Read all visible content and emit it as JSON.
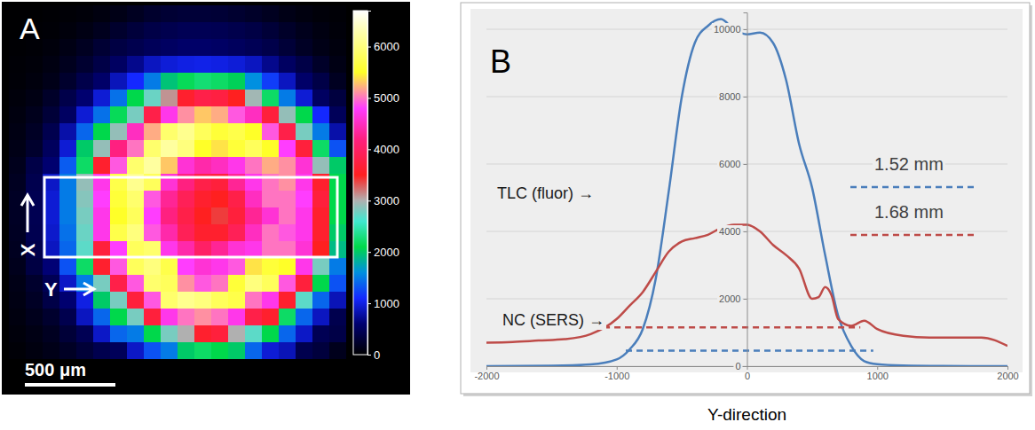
{
  "chart_data": [
    {
      "type": "heatmap",
      "panel": "A",
      "tick_labels": false,
      "scale_bar_label": "500 μm",
      "box_labels": [
        "X",
        "Y"
      ],
      "values": [
        [
          10,
          10,
          20,
          30,
          50,
          80,
          120,
          180,
          240,
          280,
          300,
          300,
          290,
          260,
          220,
          170,
          120,
          80,
          50,
          30
        ],
        [
          10,
          20,
          30,
          60,
          100,
          160,
          240,
          320,
          380,
          420,
          450,
          450,
          440,
          410,
          370,
          300,
          220,
          150,
          90,
          50
        ],
        [
          20,
          30,
          60,
          110,
          180,
          280,
          360,
          420,
          480,
          520,
          560,
          560,
          540,
          500,
          460,
          400,
          300,
          200,
          120,
          70
        ],
        [
          30,
          50,
          90,
          160,
          260,
          380,
          520,
          700,
          880,
          960,
          1000,
          1020,
          1000,
          960,
          880,
          700,
          520,
          380,
          220,
          110
        ],
        [
          40,
          70,
          130,
          240,
          400,
          560,
          860,
          1100,
          1500,
          1950,
          2150,
          2250,
          2200,
          2050,
          1600,
          1200,
          880,
          560,
          380,
          180
        ],
        [
          60,
          100,
          220,
          400,
          600,
          950,
          1450,
          2100,
          2750,
          3100,
          3600,
          3800,
          3750,
          3500,
          2950,
          2200,
          1500,
          950,
          520,
          340
        ],
        [
          80,
          150,
          300,
          520,
          950,
          1450,
          2150,
          2800,
          3800,
          4700,
          5100,
          5300,
          5200,
          4900,
          4500,
          3700,
          2900,
          2100,
          1100,
          480
        ],
        [
          100,
          200,
          420,
          800,
          1400,
          2100,
          2900,
          4500,
          5200,
          5900,
          6100,
          5800,
          5600,
          5700,
          5500,
          4900,
          3800,
          2800,
          1500,
          800
        ],
        [
          120,
          240,
          500,
          950,
          2000,
          2900,
          4200,
          5000,
          5900,
          6200,
          6000,
          5500,
          5400,
          5600,
          5800,
          5500,
          4800,
          3700,
          2200,
          1300
        ],
        [
          150,
          380,
          600,
          1350,
          2200,
          3600,
          4900,
          5900,
          6200,
          5300,
          4600,
          4400,
          4500,
          4700,
          5000,
          5200,
          5100,
          4600,
          2900,
          2000
        ],
        [
          180,
          420,
          900,
          1500,
          2900,
          4700,
          5700,
          6100,
          5800,
          4600,
          4200,
          3800,
          3700,
          4300,
          4700,
          5000,
          5100,
          4700,
          3600,
          2100
        ],
        [
          200,
          440,
          950,
          1500,
          2850,
          4800,
          5600,
          5900,
          4900,
          4300,
          3900,
          3600,
          3500,
          3800,
          4500,
          5000,
          5000,
          4800,
          3700,
          2100
        ],
        [
          200,
          440,
          950,
          1500,
          2800,
          4700,
          5500,
          5800,
          4800,
          4200,
          3800,
          3500,
          3400,
          3700,
          4300,
          4600,
          5000,
          4700,
          3600,
          2100
        ],
        [
          190,
          430,
          920,
          1450,
          2750,
          4700,
          5700,
          6000,
          4900,
          4400,
          3900,
          3600,
          3600,
          3900,
          4500,
          5000,
          4900,
          4700,
          3600,
          2000
        ],
        [
          170,
          400,
          880,
          1400,
          2700,
          3700,
          4800,
          5800,
          5900,
          4700,
          4400,
          4000,
          4300,
          4600,
          4700,
          5000,
          5000,
          4600,
          3500,
          1900
        ],
        [
          150,
          360,
          620,
          1300,
          2200,
          3600,
          4900,
          5800,
          6000,
          5700,
          4800,
          4600,
          4700,
          4900,
          5400,
          5600,
          5500,
          4700,
          2800,
          1500
        ],
        [
          120,
          240,
          450,
          900,
          1500,
          2800,
          3800,
          4900,
          5900,
          5800,
          5100,
          4900,
          5000,
          5600,
          6000,
          5800,
          4900,
          3700,
          2100,
          1300
        ],
        [
          100,
          200,
          380,
          600,
          1000,
          2000,
          2800,
          3700,
          4900,
          5900,
          6100,
          6000,
          5800,
          5700,
          5000,
          4700,
          3600,
          2700,
          1400,
          850
        ],
        [
          80,
          150,
          250,
          420,
          880,
          1400,
          2100,
          2800,
          3700,
          4700,
          5000,
          5100,
          5000,
          4700,
          3800,
          3600,
          2200,
          1400,
          880,
          420
        ],
        [
          60,
          110,
          180,
          300,
          450,
          900,
          1400,
          1500,
          2100,
          2800,
          3000,
          3600,
          3700,
          3000,
          2700,
          2100,
          1400,
          900,
          450,
          380
        ],
        [
          40,
          80,
          130,
          200,
          300,
          420,
          480,
          900,
          1300,
          1500,
          2000,
          2200,
          2100,
          2000,
          1400,
          950,
          850,
          420,
          330,
          150
        ]
      ],
      "colorbar": {
        "range": [
          0,
          6700
        ],
        "ticks": [
          0,
          1000,
          2000,
          3000,
          4000,
          5000,
          6000
        ]
      }
    },
    {
      "type": "line",
      "panel": "B",
      "xlabel": "Y-direction",
      "xlim": [
        -2000,
        2000
      ],
      "xticks": [
        -2000,
        -1000,
        0,
        1000,
        2000
      ],
      "ylim": [
        0,
        10500
      ],
      "yticks": [
        0,
        2000,
        4000,
        6000,
        8000,
        10000
      ],
      "grid": true,
      "series": [
        {
          "name": "TLC (fluor) →",
          "color": "#4a7ebb",
          "x": [
            -2000,
            -1500,
            -1200,
            -1000,
            -900,
            -800,
            -700,
            -600,
            -500,
            -400,
            -300,
            -200,
            -100,
            0,
            100,
            200,
            300,
            400,
            500,
            600,
            700,
            800,
            900,
            1000,
            1200,
            1500,
            2000
          ],
          "values": [
            0,
            10,
            50,
            200,
            500,
            1100,
            2600,
            5200,
            8000,
            9600,
            10100,
            10300,
            10000,
            9850,
            9900,
            9600,
            8500,
            6600,
            5300,
            3300,
            1500,
            600,
            150,
            60,
            20,
            5,
            0
          ]
        },
        {
          "name": "NC (SERS) →",
          "color": "#be4b48",
          "x": [
            -2000,
            -1800,
            -1600,
            -1400,
            -1200,
            -1000,
            -900,
            -800,
            -700,
            -600,
            -500,
            -400,
            -300,
            -200,
            -100,
            0,
            100,
            200,
            300,
            400,
            500,
            550,
            600,
            650,
            700,
            800,
            900,
            1000,
            1200,
            1400,
            1600,
            1800,
            2000
          ],
          "values": [
            700,
            720,
            760,
            800,
            950,
            1400,
            1800,
            2200,
            2800,
            3400,
            3700,
            3800,
            3900,
            4100,
            4200,
            4200,
            4000,
            3600,
            3300,
            2900,
            2000,
            2050,
            2350,
            2100,
            1400,
            1200,
            1350,
            1100,
            900,
            850,
            850,
            850,
            600
          ]
        }
      ],
      "widths": [
        {
          "label": "1.52 mm",
          "color": "#4a7ebb",
          "x": [
            -930,
            970
          ],
          "y": 460
        },
        {
          "label": "1.68 mm",
          "color": "#be4b48",
          "x": [
            -1100,
            870
          ],
          "y": 1150
        }
      ]
    }
  ]
}
